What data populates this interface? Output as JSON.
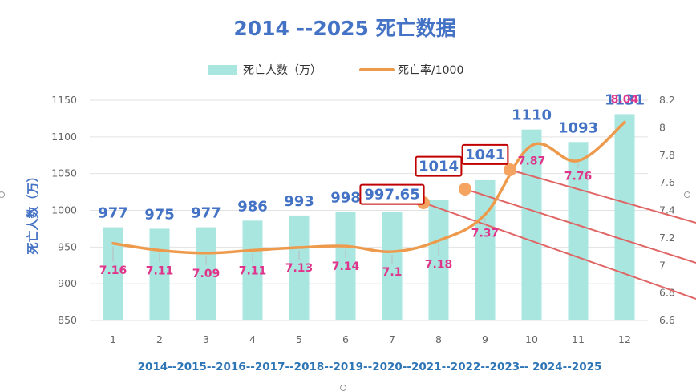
{
  "chart_data": {
    "type": "bar",
    "title": "2014 --2025  死亡数据",
    "ylabel": "死亡人数（万）",
    "categories": [
      "1",
      "2",
      "3",
      "4",
      "5",
      "6",
      "7",
      "8",
      "9",
      "10",
      "11",
      "12"
    ],
    "year_axis_label": "2014--2015--2016--2017--2018--2019--2020--2021--2022--2023-- 2024--2025",
    "ylim": [
      850,
      1150
    ],
    "y_ticks": [
      850,
      900,
      950,
      1000,
      1050,
      1100,
      1150
    ],
    "y2lim": [
      6.6,
      8.2
    ],
    "y2_ticks": [
      "6.6",
      "6.8",
      "7",
      "7.2",
      "7.4",
      "7.6",
      "7.8",
      "8",
      "8.2"
    ],
    "series": [
      {
        "name": "死亡人数（万）",
        "kind": "bar",
        "color": "#a9e6df",
        "values": [
          977,
          975,
          977,
          986,
          993,
          998,
          997.65,
          1014,
          1041,
          1110,
          1093,
          1131
        ],
        "labels": [
          "977",
          "975",
          "977",
          "986",
          "993",
          "998",
          "997.65",
          "1014",
          "1041",
          "1110",
          "1093",
          "1131"
        ],
        "boxed_labels": [
          false,
          false,
          false,
          false,
          false,
          false,
          true,
          true,
          true,
          false,
          false,
          false
        ]
      },
      {
        "name": "死亡率/1000",
        "kind": "line",
        "axis": "secondary",
        "color": "#ed9a4d",
        "values": [
          7.16,
          7.11,
          7.09,
          7.11,
          7.13,
          7.14,
          7.1,
          7.18,
          7.37,
          7.87,
          7.76,
          8.04
        ],
        "labels": [
          "7.16",
          "7.11",
          "7.09",
          "7.11",
          "7.13",
          "7.14",
          "7.1",
          "7.18",
          "7.37",
          "7.87",
          "7.76",
          "8.04"
        ]
      }
    ],
    "legend": {
      "placement": "top"
    },
    "grid": true,
    "annotations": {
      "highlight_color": "#c00000",
      "pointer_color": "#e06666",
      "dot_color": "#f4a460"
    }
  }
}
